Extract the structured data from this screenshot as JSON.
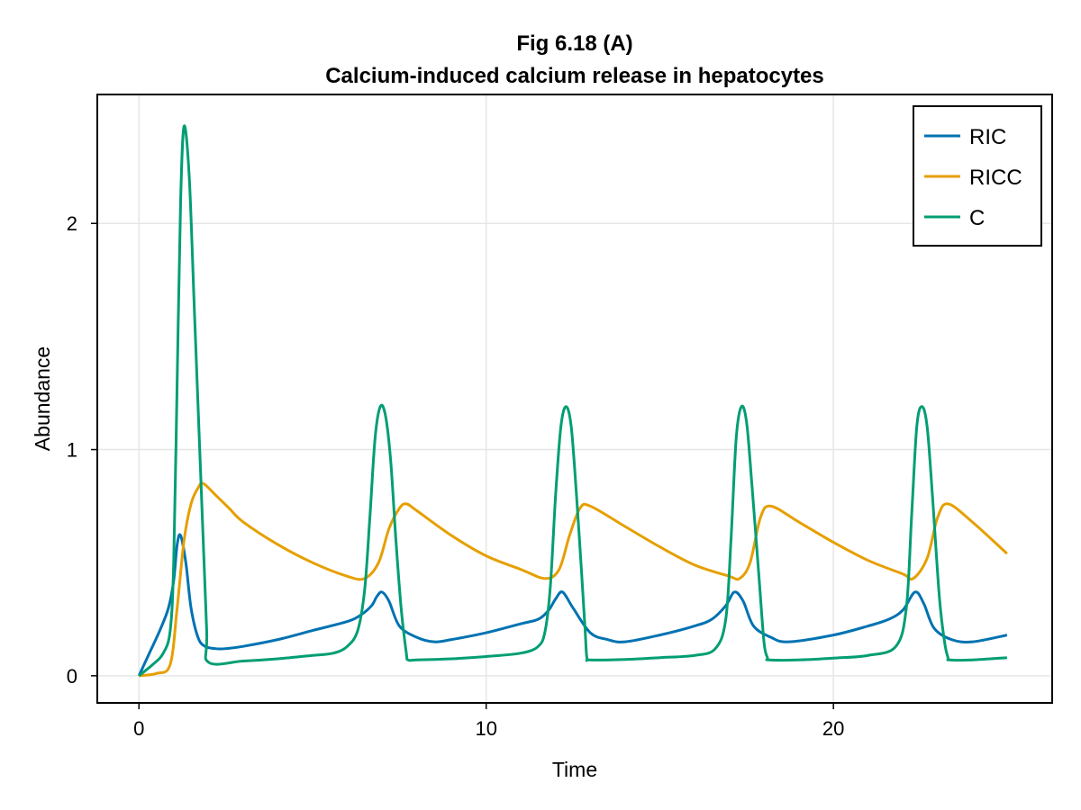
{
  "chart_data": {
    "type": "line",
    "title": "Fig 6.18 (A)",
    "subtitle": "Calcium-induced calcium release in hepatocytes",
    "xlabel": "Time",
    "ylabel": "Abundance",
    "xlim": [
      -1.2,
      26.3
    ],
    "ylim": [
      -0.12,
      2.57
    ],
    "xticks": [
      0,
      10,
      20
    ],
    "yticks": [
      0,
      1,
      2
    ],
    "grid": true,
    "legend_position": "top-right",
    "series": [
      {
        "name": "RIC",
        "color": "#0072b2",
        "x": [
          0,
          0.3,
          0.6,
          0.85,
          1.0,
          1.1,
          1.2,
          1.35,
          1.5,
          1.7,
          1.9,
          2.2,
          2.5,
          3,
          4,
          5,
          6,
          6.4,
          6.7,
          6.85,
          7.0,
          7.2,
          7.5,
          8.0,
          8.5,
          9,
          10,
          11,
          11.5,
          11.8,
          12.0,
          12.2,
          12.5,
          13,
          13.5,
          14,
          15,
          16,
          16.5,
          16.9,
          17.15,
          17.4,
          17.7,
          18.2,
          18.7,
          20,
          21,
          21.6,
          22.0,
          22.35,
          22.6,
          22.9,
          23.4,
          24,
          25
        ],
        "y": [
          0.0,
          0.1,
          0.2,
          0.3,
          0.42,
          0.58,
          0.62,
          0.5,
          0.3,
          0.17,
          0.13,
          0.12,
          0.12,
          0.13,
          0.16,
          0.2,
          0.24,
          0.27,
          0.31,
          0.35,
          0.37,
          0.33,
          0.22,
          0.17,
          0.15,
          0.16,
          0.19,
          0.23,
          0.25,
          0.29,
          0.34,
          0.37,
          0.3,
          0.19,
          0.16,
          0.15,
          0.18,
          0.22,
          0.25,
          0.31,
          0.37,
          0.33,
          0.22,
          0.17,
          0.15,
          0.18,
          0.22,
          0.25,
          0.29,
          0.37,
          0.32,
          0.21,
          0.16,
          0.15,
          0.18
        ]
      },
      {
        "name": "RICC",
        "color": "#e69f00",
        "x": [
          0,
          0.5,
          0.9,
          1.1,
          1.3,
          1.5,
          1.7,
          1.85,
          2.2,
          2.6,
          3,
          4,
          5,
          6,
          6.5,
          6.9,
          7.2,
          7.5,
          7.7,
          8,
          9,
          10,
          11,
          11.7,
          12.1,
          12.4,
          12.7,
          13,
          14,
          15,
          16,
          17,
          17.3,
          17.6,
          17.9,
          18.2,
          19,
          20,
          21,
          22,
          22.3,
          22.7,
          23.0,
          23.3,
          24,
          25
        ],
        "y": [
          0.0,
          0.01,
          0.05,
          0.3,
          0.6,
          0.76,
          0.83,
          0.85,
          0.8,
          0.74,
          0.68,
          0.58,
          0.5,
          0.44,
          0.43,
          0.5,
          0.65,
          0.74,
          0.76,
          0.73,
          0.62,
          0.53,
          0.47,
          0.43,
          0.47,
          0.62,
          0.74,
          0.75,
          0.66,
          0.57,
          0.49,
          0.44,
          0.43,
          0.5,
          0.7,
          0.75,
          0.68,
          0.59,
          0.51,
          0.45,
          0.43,
          0.52,
          0.7,
          0.76,
          0.68,
          0.54
        ]
      },
      {
        "name": "C",
        "color": "#009e73",
        "x": [
          0,
          0.4,
          0.7,
          0.9,
          1.0,
          1.1,
          1.2,
          1.3,
          1.45,
          1.6,
          1.8,
          1.95,
          2.0,
          3,
          4,
          5,
          5.6,
          6,
          6.3,
          6.5,
          6.65,
          6.8,
          6.95,
          7.1,
          7.25,
          7.4,
          7.55,
          7.7,
          7.75,
          8,
          9,
          10,
          11,
          11.5,
          11.7,
          11.85,
          12.0,
          12.15,
          12.3,
          12.45,
          12.6,
          12.75,
          12.85,
          12.9,
          13,
          14,
          15,
          16,
          16.6,
          16.9,
          17.05,
          17.2,
          17.35,
          17.5,
          17.65,
          17.85,
          18.0,
          18.1,
          18.15,
          19,
          20,
          21,
          21.8,
          22.1,
          22.25,
          22.4,
          22.55,
          22.7,
          22.85,
          23.05,
          23.2,
          23.3,
          23.35,
          24,
          25
        ],
        "y": [
          0.0,
          0.05,
          0.1,
          0.2,
          0.5,
          1.3,
          2.1,
          2.43,
          2.2,
          1.6,
          0.8,
          0.2,
          0.06,
          0.065,
          0.075,
          0.09,
          0.1,
          0.13,
          0.2,
          0.38,
          0.7,
          1.05,
          1.19,
          1.15,
          0.95,
          0.6,
          0.3,
          0.1,
          0.07,
          0.07,
          0.075,
          0.085,
          0.1,
          0.13,
          0.2,
          0.4,
          0.8,
          1.1,
          1.19,
          1.1,
          0.8,
          0.45,
          0.2,
          0.08,
          0.07,
          0.072,
          0.08,
          0.09,
          0.12,
          0.25,
          0.6,
          1.05,
          1.19,
          1.12,
          0.85,
          0.45,
          0.15,
          0.08,
          0.07,
          0.07,
          0.078,
          0.09,
          0.13,
          0.3,
          0.7,
          1.1,
          1.19,
          1.1,
          0.8,
          0.35,
          0.15,
          0.08,
          0.07,
          0.07,
          0.08
        ]
      }
    ]
  }
}
